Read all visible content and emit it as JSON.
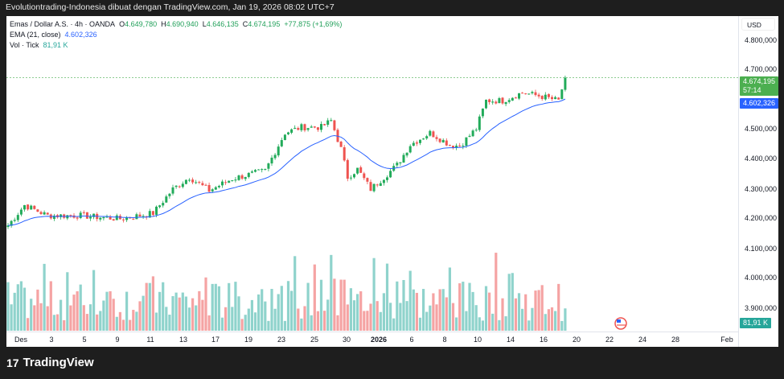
{
  "header": {
    "title": "Evolutiontrading-Indonesia dibuat dengan TradingView.com, Jan 19, 2026 08:02 UTC+7"
  },
  "legend": {
    "symbol": "Emas / Dollar A.S. · 4h · OANDA",
    "o_label": "O",
    "o": "4.649,780",
    "h_label": "H",
    "h": "4.690,940",
    "l_label": "L",
    "l": "4.646,135",
    "c_label": "C",
    "c": "4.674,195",
    "change": "+77,875 (+1,69%)",
    "ema_label": "EMA (21, close)",
    "ema": "4.602,326",
    "vol_label": "Vol · Tick",
    "vol": "81,91 K"
  },
  "price_axis": {
    "currency": "USD",
    "labels": [
      "4.800,000",
      "4.700,000",
      "4.500,000",
      "4.400,000",
      "4.300,000",
      "4.200,000",
      "4.100,000",
      "4.000,000",
      "3.900,000"
    ],
    "last_price": "4.674,195",
    "countdown": "57:14",
    "ema_value": "4.602,326",
    "volume_value": "81,91 K"
  },
  "time_axis": [
    "Des",
    "3",
    "5",
    "9",
    "11",
    "13",
    "17",
    "19",
    "23",
    "25",
    "30",
    "2026",
    "6",
    "8",
    "10",
    "14",
    "16",
    "20",
    "22",
    "24",
    "28",
    "Feb"
  ],
  "colors": {
    "up": "#26a69a",
    "down": "#ef5350",
    "candle_up": "#22ab5a",
    "ema": "#2962ff",
    "vol_up": "#8fd3cc",
    "vol_down": "#f5a3a3"
  },
  "chart_data": {
    "type": "candlestick",
    "price_anchors": [
      [
        0,
        4178000
      ],
      [
        5,
        4246000
      ],
      [
        12,
        4211000
      ],
      [
        22,
        4211000
      ],
      [
        34,
        4200000
      ],
      [
        44,
        4219000
      ],
      [
        50,
        4300000
      ],
      [
        55,
        4340000
      ],
      [
        61,
        4295000
      ],
      [
        68,
        4335000
      ],
      [
        78,
        4362000
      ],
      [
        84,
        4489000
      ],
      [
        89,
        4508000
      ],
      [
        95,
        4508000
      ],
      [
        98,
        4530000
      ],
      [
        101,
        4435000
      ],
      [
        103,
        4340000
      ],
      [
        106,
        4367000
      ],
      [
        110,
        4300000
      ],
      [
        115,
        4350000
      ],
      [
        118,
        4381000
      ],
      [
        122,
        4449000
      ],
      [
        128,
        4489000
      ],
      [
        134,
        4449000
      ],
      [
        137,
        4445000
      ],
      [
        142,
        4503000
      ],
      [
        145,
        4597000
      ],
      [
        150,
        4597000
      ],
      [
        156,
        4624000
      ],
      [
        162,
        4611000
      ],
      [
        167,
        4597000
      ],
      [
        169,
        4674195
      ]
    ],
    "ema_last": 4602326
  },
  "footer": {
    "brand": "TradingView"
  }
}
